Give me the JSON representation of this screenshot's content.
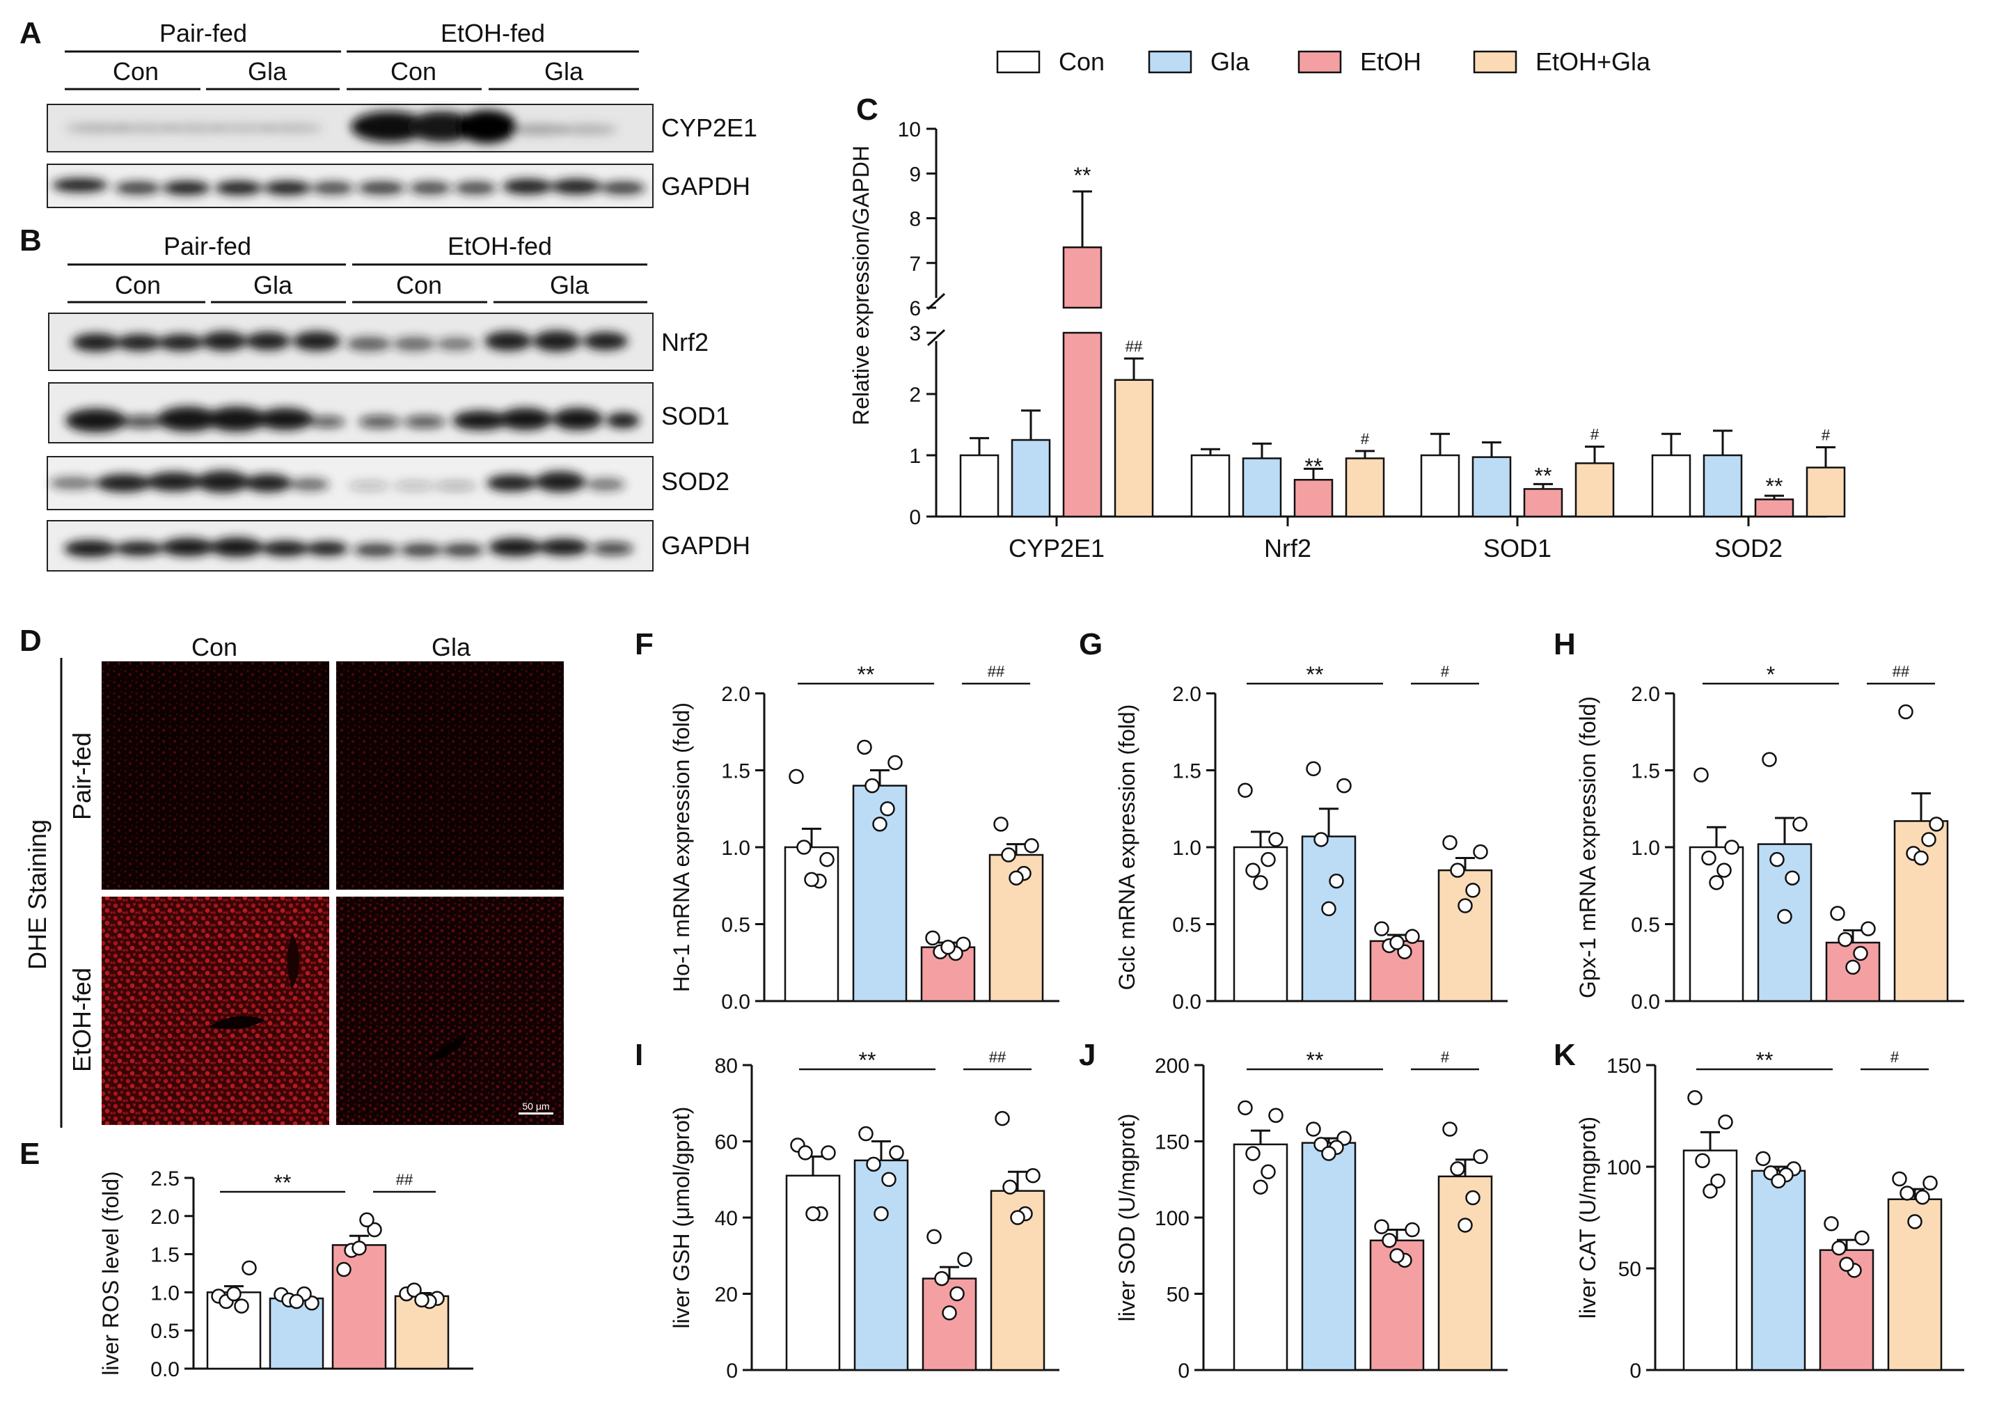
{
  "legend": {
    "groups": [
      "Con",
      "Gla",
      "EtOH",
      "EtOH+Gla"
    ],
    "colors": [
      "#ffffff",
      "#bcdcf6",
      "#f4a0a3",
      "#fbdbb6"
    ]
  },
  "panel_a": {
    "letter": "A",
    "left_group": "Pair-fed",
    "right_group": "EtOH-fed",
    "sub_labels": [
      "Con",
      "Gla",
      "Con",
      "Gla"
    ],
    "bands": [
      "CYP2E1",
      "GAPDH"
    ]
  },
  "panel_b": {
    "letter": "B",
    "left_group": "Pair-fed",
    "right_group": "EtOH-fed",
    "sub_labels": [
      "Con",
      "Gla",
      "Con",
      "Gla"
    ],
    "bands": [
      "Nrf2",
      "SOD1",
      "SOD2",
      "GAPDH"
    ]
  },
  "panel_d": {
    "letter": "D",
    "col_labels": [
      "Con",
      "Gla"
    ],
    "row_labels": [
      "Pair-fed",
      "EtOH-fed"
    ],
    "side_label": "DHE Staining",
    "scale_bar": "50 μm"
  },
  "chart_data": [
    {
      "panel": "C",
      "type": "bar",
      "ylabel": "Relative expression/GAPDH",
      "categories": [
        "CYP2E1",
        "Nrf2",
        "SOD1",
        "SOD2"
      ],
      "ylim_lower": [
        0,
        3
      ],
      "ylim_upper": [
        6,
        10
      ],
      "yticks": [
        "0",
        "1",
        "2",
        "3",
        "6",
        "7",
        "8",
        "9",
        "10"
      ],
      "series": [
        {
          "name": "Con",
          "values": [
            1.0,
            1.0,
            1.0,
            1.0
          ],
          "errors": [
            0.28,
            0.1,
            0.35,
            0.35
          ],
          "sig": [
            "",
            "",
            "",
            ""
          ]
        },
        {
          "name": "Gla",
          "values": [
            1.25,
            0.95,
            0.97,
            1.0
          ],
          "errors": [
            0.48,
            0.24,
            0.24,
            0.4
          ],
          "sig": [
            "",
            "",
            "",
            ""
          ]
        },
        {
          "name": "EtOH",
          "values": [
            7.35,
            0.6,
            0.45,
            0.28
          ],
          "errors": [
            1.25,
            0.18,
            0.08,
            0.06
          ],
          "sig": [
            "**",
            "**",
            "**",
            "**"
          ]
        },
        {
          "name": "EtOH+Gla",
          "values": [
            2.23,
            0.95,
            0.87,
            0.8
          ],
          "errors": [
            0.35,
            0.12,
            0.27,
            0.33
          ],
          "sig": [
            "##",
            "#",
            "#",
            "#"
          ]
        }
      ]
    },
    {
      "panel": "E",
      "type": "bar",
      "ylabel": "liver ROS level (fold)",
      "ylim": [
        0,
        2.5
      ],
      "yticks": [
        "0.0",
        "0.5",
        "1.0",
        "1.5",
        "2.0",
        "2.5"
      ],
      "values": [
        1.0,
        0.92,
        1.62,
        0.95
      ],
      "errors": [
        0.08,
        0.03,
        0.12,
        0.04
      ],
      "points": [
        [
          0.95,
          1.32,
          0.88,
          0.82,
          0.98
        ],
        [
          0.97,
          0.86,
          0.9,
          0.98,
          0.88
        ],
        [
          1.3,
          1.82,
          1.55,
          1.95,
          1.58
        ],
        [
          0.98,
          0.92,
          1.03,
          0.88,
          0.9
        ]
      ],
      "comparisons": [
        {
          "from": 0,
          "to": 2,
          "label": "**"
        },
        {
          "from": 2,
          "to": 3,
          "label": "##"
        }
      ]
    },
    {
      "panel": "F",
      "type": "bar",
      "ylabel": "Ho-1 mRNA expression (fold)",
      "ylim": [
        0,
        2.0
      ],
      "yticks": [
        "0.0",
        "0.5",
        "1.0",
        "1.5",
        "2.0"
      ],
      "values": [
        1.0,
        1.4,
        0.35,
        0.95
      ],
      "errors": [
        0.12,
        0.1,
        0.03,
        0.07
      ],
      "points": [
        [
          1.46,
          0.92,
          1.0,
          0.78,
          0.79
        ],
        [
          1.65,
          1.55,
          1.4,
          1.25,
          1.15
        ],
        [
          0.41,
          0.37,
          0.32,
          0.31,
          0.35
        ],
        [
          1.15,
          1.01,
          0.95,
          0.83,
          0.8
        ]
      ],
      "comparisons": [
        {
          "from": 0,
          "to": 2,
          "label": "**"
        },
        {
          "from": 2,
          "to": 3,
          "label": "##"
        }
      ]
    },
    {
      "panel": "G",
      "type": "bar",
      "ylabel": "Gclc mRNA expression (fold)",
      "ylim": [
        0,
        2.0
      ],
      "yticks": [
        "0.0",
        "0.5",
        "1.0",
        "1.5",
        "2.0"
      ],
      "values": [
        1.0,
        1.07,
        0.39,
        0.85
      ],
      "errors": [
        0.1,
        0.18,
        0.04,
        0.08
      ],
      "points": [
        [
          1.37,
          1.05,
          0.85,
          0.92,
          0.77
        ],
        [
          1.51,
          1.4,
          1.05,
          0.78,
          0.6
        ],
        [
          0.47,
          0.42,
          0.36,
          0.32,
          0.38
        ],
        [
          1.03,
          0.97,
          0.85,
          0.72,
          0.62
        ]
      ],
      "comparisons": [
        {
          "from": 0,
          "to": 2,
          "label": "**"
        },
        {
          "from": 2,
          "to": 3,
          "label": "#"
        }
      ]
    },
    {
      "panel": "H",
      "type": "bar",
      "ylabel": "Gpx-1 mRNA expression (fold)",
      "ylim": [
        0,
        2.0
      ],
      "yticks": [
        "0.0",
        "0.5",
        "1.0",
        "1.5",
        "2.0"
      ],
      "values": [
        1.0,
        1.02,
        0.38,
        1.17
      ],
      "errors": [
        0.13,
        0.17,
        0.08,
        0.18
      ],
      "points": [
        [
          1.47,
          1.0,
          0.93,
          0.85,
          0.77
        ],
        [
          1.57,
          1.15,
          0.92,
          0.8,
          0.55
        ],
        [
          0.57,
          0.47,
          0.4,
          0.31,
          0.22
        ],
        [
          1.88,
          1.15,
          0.96,
          1.05,
          0.93
        ]
      ],
      "comparisons": [
        {
          "from": 0,
          "to": 2,
          "label": "*"
        },
        {
          "from": 2,
          "to": 3,
          "label": "##"
        }
      ]
    },
    {
      "panel": "I",
      "type": "bar",
      "ylabel": "liver GSH (μmol/gprot)",
      "ylim": [
        0,
        80
      ],
      "yticks": [
        "0",
        "20",
        "40",
        "60",
        "80"
      ],
      "values": [
        51,
        55,
        24,
        47
      ],
      "errors": [
        5,
        5,
        3,
        5
      ],
      "points": [
        [
          59,
          57,
          57,
          41,
          41
        ],
        [
          62,
          57,
          54,
          50,
          41
        ],
        [
          35,
          29,
          24,
          20,
          15
        ],
        [
          66,
          51,
          48,
          41,
          40
        ]
      ],
      "comparisons": [
        {
          "from": 0,
          "to": 2,
          "label": "**"
        },
        {
          "from": 2,
          "to": 3,
          "label": "##"
        }
      ]
    },
    {
      "panel": "J",
      "type": "bar",
      "ylabel": "liver SOD (U/mgprot)",
      "ylim": [
        0,
        200
      ],
      "yticks": [
        "0",
        "50",
        "100",
        "150",
        "200"
      ],
      "values": [
        148,
        149,
        85,
        127
      ],
      "errors": [
        9,
        3,
        7,
        11
      ],
      "points": [
        [
          172,
          167,
          142,
          130,
          120
        ],
        [
          158,
          152,
          148,
          146,
          142
        ],
        [
          94,
          92,
          85,
          72,
          75
        ],
        [
          158,
          140,
          132,
          113,
          95
        ]
      ],
      "comparisons": [
        {
          "from": 0,
          "to": 2,
          "label": "**"
        },
        {
          "from": 2,
          "to": 3,
          "label": "#"
        }
      ]
    },
    {
      "panel": "K",
      "type": "bar",
      "ylabel": "liver CAT (U/mgprot)",
      "ylim": [
        0,
        150
      ],
      "yticks": [
        "0",
        "50",
        "100",
        "150"
      ],
      "values": [
        108,
        98,
        59,
        84
      ],
      "errors": [
        9,
        2,
        5,
        5
      ],
      "points": [
        [
          134,
          122,
          103,
          93,
          88
        ],
        [
          104,
          99,
          97,
          96,
          93
        ],
        [
          72,
          65,
          60,
          49,
          52
        ],
        [
          94,
          92,
          87,
          85,
          73
        ]
      ],
      "comparisons": [
        {
          "from": 0,
          "to": 2,
          "label": "**"
        },
        {
          "from": 2,
          "to": 3,
          "label": "#"
        }
      ]
    }
  ]
}
